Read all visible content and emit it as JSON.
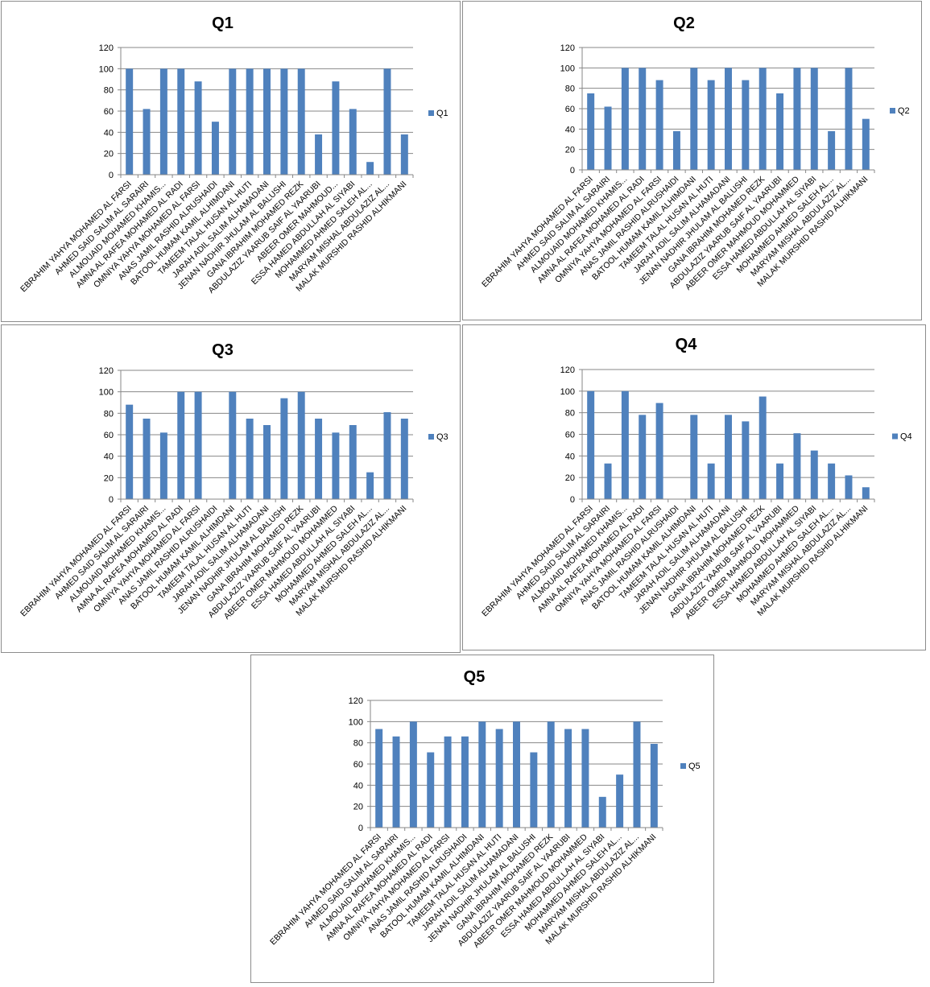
{
  "colors": {
    "bar": "#4f81bd",
    "grid": "#878787",
    "axis": "#878787"
  },
  "chart_data": [
    {
      "type": "bar",
      "title": "Q1",
      "categories": [
        "EBRAHIM YAHYA MOHAMED AL FARSI",
        "AHMED SAID SALIM AL SARAIRI",
        "ALMOUAID MOHAMED KHAMIS...",
        "AMNA AL RAFEA MOHAMED AL RADI",
        "OMNIYA YAHYA MOHAMED AL FARSI",
        "ANAS JAMIL RASHID ALRUSHAIDI",
        "BATOOL HUMAM KAMIL ALHIMDANI",
        "TAMEEM TALAL HUSAN AL HUTI",
        "JARAH ADIL SALIM ALHAMADANI",
        "JENAN NADHIR JHULAM AL BALUSHI",
        "GANA IBRAHIM MOHAMED REZK",
        "ABDULAZIZ YAARUB SAIF AL YAARUBI",
        "ABEER OMER MAHMOUD...",
        "ESSA HAMED ABDULLAH AL SIYABI",
        "MOHAMMED AHMED SALEH AL...",
        "MARYAM MISHAL ABDULAZIZ AL...",
        "MALAK MURSHID RASHID ALHIKMANI"
      ],
      "series": [
        {
          "name": "Q1",
          "values": [
            100,
            62,
            100,
            100,
            88,
            50,
            100,
            100,
            100,
            100,
            100,
            38,
            88,
            62,
            12,
            100,
            38
          ]
        }
      ],
      "ylim": [
        0,
        120
      ],
      "yticks": [
        0,
        20,
        40,
        60,
        80,
        100,
        120
      ],
      "legend": "right",
      "grid": true
    },
    {
      "type": "bar",
      "title": "Q2",
      "categories": [
        "EBRAHIM YAHYA MOHAMED AL FARSI",
        "AHMED SAID SALIM AL SARAIRI",
        "ALMOUAID MOHAMED KHAMIS...",
        "AMNA AL RAFEA MOHAMED AL RADI",
        "OMNIYA YAHYA MOHAMED AL FARSI",
        "ANAS JAMIL RASHID ALRUSHAIDI",
        "BATOOL HUMAM KAMIL ALHIMDANI",
        "TAMEEM TALAL HUSAN AL HUTI",
        "JARAH ADIL SALIM ALHAMADANI",
        "JENAN NADHIR JHULAM AL BALUSHI",
        "GANA IBRAHIM MOHAMED REZK",
        "ABDULAZIZ YAARUB SAIF AL YAARUBI",
        "ABEER OMER MAHMOUD MOHAMMED",
        "ESSA HAMED ABDULLAH AL SIYABI",
        "MOHAMMED AHMED SALEH AL...",
        "MARYAM MISHAL ABDULAZIZ AL...",
        "MALAK MURSHID RASHID ALHIKMANI"
      ],
      "series": [
        {
          "name": "Q2",
          "values": [
            75,
            62,
            100,
            100,
            88,
            38,
            100,
            88,
            100,
            88,
            100,
            75,
            100,
            100,
            38,
            100,
            50
          ]
        }
      ],
      "ylim": [
        0,
        120
      ],
      "yticks": [
        0,
        20,
        40,
        60,
        80,
        100,
        120
      ],
      "legend": "right",
      "grid": true
    },
    {
      "type": "bar",
      "title": "Q3",
      "categories": [
        "EBRAHIM YAHYA MOHAMED AL FARSI",
        "AHMED SAID SALIM AL SARAIRI",
        "ALMOUAID MOHAMED KHAMIS...",
        "AMNA AL RAFEA MOHAMED AL RADI",
        "OMNIYA YAHYA MOHAMED AL FARSI",
        "ANAS JAMIL RASHID ALRUSHAIDI",
        "BATOOL HUMAM KAMIL ALHIMDANI",
        "TAMEEM TALAL HUSAN AL HUTI",
        "JARAH ADIL SALIM ALHAMADANI",
        "JENAN NADHIR JHULAM AL BALUSHI",
        "GANA IBRAHIM MOHAMED REZK",
        "ABDULAZIZ YAARUB SAIF AL YAARUBI",
        "ABEER OMER MAHMOUD MOHAMMED",
        "ESSA HAMED ABDULLAH AL SIYABI",
        "MOHAMMED AHMED SALEH AL...",
        "MARYAM MISHAL ABDULAZIZ AL...",
        "MALAK MURSHID RASHID ALHIKMANI"
      ],
      "series": [
        {
          "name": "Q3",
          "values": [
            88,
            75,
            62,
            100,
            100,
            0,
            100,
            75,
            69,
            94,
            100,
            75,
            62,
            69,
            25,
            81,
            75
          ]
        }
      ],
      "ylim": [
        0,
        120
      ],
      "yticks": [
        0,
        20,
        40,
        60,
        80,
        100,
        120
      ],
      "legend": "right",
      "grid": true
    },
    {
      "type": "bar",
      "title": "Q4",
      "categories": [
        "EBRAHIM YAHYA MOHAMED AL FARSI",
        "AHMED SAID SALIM AL SARAIRI",
        "ALMOUAID MOHAMED KHAMIS...",
        "AMNA AL RAFEA MOHAMED AL RADI",
        "OMNIYA YAHYA MOHAMED AL FARSI",
        "ANAS JAMIL RASHID ALRUSHAIDI",
        "BATOOL HUMAM KAMIL ALHIMDANI",
        "TAMEEM TALAL HUSAN AL HUTI",
        "JARAH ADIL SALIM ALHAMADANI",
        "JENAN NADHIR JHULAM AL BALUSHI",
        "GANA IBRAHIM MOHAMED REZK",
        "ABDULAZIZ YAARUB SAIF AL YAARUBI",
        "ABEER OMER MAHMOUD MOHAMMED",
        "ESSA HAMED ABDULLAH AL SIYABI",
        "MOHAMMED AHMED SALEH AL...",
        "MARYAM MISHAL ABDULAZIZ AL...",
        "MALAK MURSHID RASHID ALHIKMANI"
      ],
      "series": [
        {
          "name": "Q4",
          "values": [
            100,
            33,
            100,
            78,
            89,
            0,
            78,
            33,
            78,
            72,
            95,
            33,
            61,
            45,
            33,
            22,
            11
          ]
        }
      ],
      "ylim": [
        0,
        120
      ],
      "yticks": [
        0,
        20,
        40,
        60,
        80,
        100,
        120
      ],
      "legend": "right",
      "grid": true
    },
    {
      "type": "bar",
      "title": "Q5",
      "categories": [
        "EBRAHIM YAHYA MOHAMED AL FARSI",
        "AHMED SAID SALIM AL SARAIRI",
        "ALMOUAID MOHAMED KHAMIS...",
        "AMNA AL RAFEA MOHAMED AL RADI",
        "OMNIYA YAHYA MOHAMED AL FARSI",
        "ANAS JAMIL RASHID ALRUSHAIDI",
        "BATOOL HUMAM KAMIL ALHIMDANI",
        "TAMEEM TALAL HUSAN AL HUTI",
        "JARAH ADIL SALIM ALHAMADANI",
        "JENAN NADHIR JHULAM AL BALUSHI",
        "GANA IBRAHIM MOHAMED REZK",
        "ABDULAZIZ YAARUB SAIF AL YAARUBI",
        "ABEER OMER MAHMOUD MOHAMMED",
        "ESSA HAMED ABDULLAH AL SIYABI",
        "MOHAMMED AHMED SALEH AL...",
        "MARYAM MISHAL ABDULAZIZ AL...",
        "MALAK MURSHID RASHID ALHIKMANI"
      ],
      "series": [
        {
          "name": "Q5",
          "values": [
            93,
            86,
            100,
            71,
            86,
            86,
            100,
            93,
            100,
            71,
            100,
            93,
            93,
            29,
            50,
            100,
            79
          ]
        }
      ],
      "ylim": [
        0,
        120
      ],
      "yticks": [
        0,
        20,
        40,
        60,
        80,
        100,
        120
      ],
      "legend": "right",
      "grid": true
    }
  ]
}
